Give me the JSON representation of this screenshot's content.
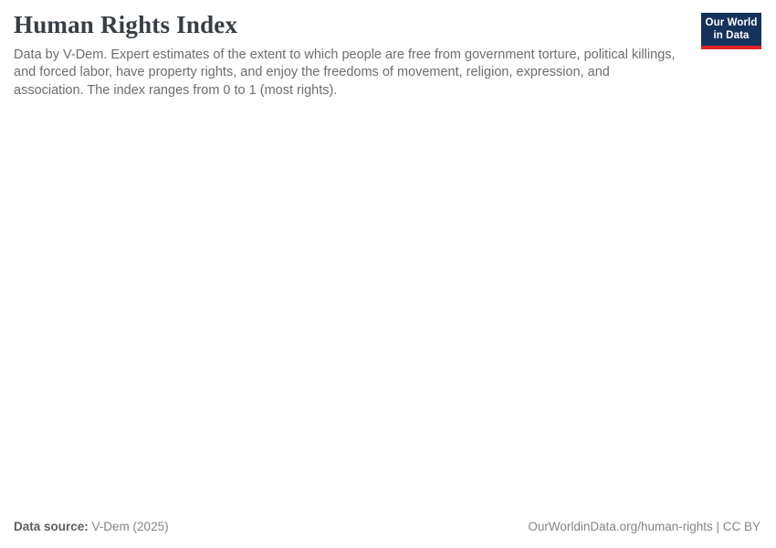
{
  "header": {
    "title": "Human Rights Index",
    "description": "Data by V-Dem. Expert estimates of the extent to which people are free from government torture, political killings, and forced labor, have property rights, and enjoy the freedoms of movement, religion, expression, and association. The index ranges from 0 to 1 (most rights)."
  },
  "logo": {
    "line1": "Our World",
    "line2": "in Data",
    "bg_color": "#14325c",
    "accent_color": "#e02228"
  },
  "footer": {
    "source_label": "Data source:",
    "source_value": "V-Dem (2025)",
    "link_text": "OurWorldinData.org/human-rights | CC BY"
  },
  "colors": {
    "title_text": "#373d43",
    "description_text": "#6d6d6d",
    "footer_text": "#858585",
    "background": "#ffffff"
  },
  "chart_data": {
    "type": "none",
    "title": "Human Rights Index",
    "series": [],
    "plot_area_visible": false,
    "index_range": [
      0,
      1
    ]
  }
}
